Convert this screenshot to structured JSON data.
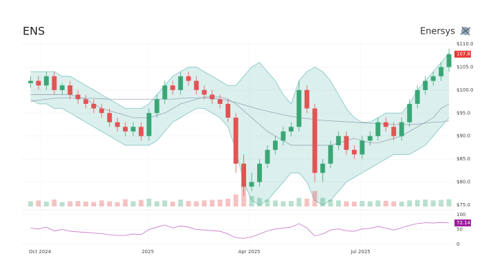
{
  "chart_data": {
    "type": "candlestick",
    "title": "ENS",
    "brand": "Enersys",
    "x": [
      1,
      2,
      3,
      4,
      5,
      6,
      7,
      8,
      9,
      10,
      11,
      12,
      13,
      14,
      15,
      16,
      17,
      18,
      19,
      20,
      21,
      22,
      23,
      24,
      25,
      26,
      27,
      28,
      29,
      30,
      31,
      32,
      33,
      34,
      35,
      36,
      37,
      38,
      39,
      40,
      41,
      42,
      43,
      44,
      45,
      46,
      47,
      48,
      49,
      50,
      51,
      52,
      53,
      54
    ],
    "xlim": [
      0,
      54.6
    ],
    "xticks": [
      {
        "value": 2.2,
        "label": "Oct 2024"
      },
      {
        "value": 15.85,
        "label": "2025"
      },
      {
        "value": 28.7,
        "label": "Apr 2025"
      },
      {
        "value": 42.8,
        "label": "Jul 2025"
      }
    ],
    "open": [
      101.5,
      102,
      101,
      103,
      100,
      101,
      99,
      98,
      97,
      96,
      95,
      93,
      92,
      91,
      92,
      90,
      95,
      98,
      101,
      100,
      103,
      102,
      100,
      99,
      98,
      97,
      94,
      84,
      79,
      80,
      84,
      87,
      89,
      91,
      92,
      100,
      96,
      82,
      84,
      88,
      90,
      87,
      86,
      89,
      90,
      93,
      92,
      90,
      93,
      97,
      100,
      102,
      103,
      105
    ],
    "high": [
      103,
      103,
      104,
      104,
      101.5,
      102,
      100,
      99,
      98,
      97,
      96,
      94,
      93,
      93,
      93,
      96,
      99,
      102,
      102,
      104,
      104,
      103,
      101,
      100,
      99,
      98,
      95,
      86,
      82,
      85,
      88,
      90,
      92,
      93,
      102,
      101,
      97,
      85,
      89,
      91,
      91,
      88,
      90,
      91,
      94,
      94,
      93,
      94,
      98,
      101,
      103,
      104,
      106,
      109
    ],
    "low": [
      100.5,
      100,
      100,
      99,
      99,
      98,
      97,
      96,
      95,
      94,
      92,
      91,
      90,
      90,
      89,
      89,
      94,
      97,
      99,
      99,
      101,
      99,
      98,
      97,
      96,
      93,
      82,
      77,
      78,
      79,
      83,
      86,
      88,
      90,
      91,
      95,
      80,
      80,
      83,
      87,
      86,
      85,
      85,
      88,
      89,
      91,
      89,
      89,
      92,
      96,
      99,
      101,
      102,
      104
    ],
    "close": [
      102,
      101,
      103,
      100,
      101,
      99,
      98,
      97,
      96,
      95,
      93,
      92,
      91,
      92,
      90,
      95,
      98,
      101,
      100,
      103,
      102,
      100,
      99,
      98,
      97,
      94,
      84,
      79,
      80,
      84,
      87,
      89,
      91,
      92,
      100,
      96,
      82,
      84,
      88,
      90,
      87,
      86,
      89,
      90,
      93,
      92,
      90,
      93,
      97,
      100,
      102,
      103,
      105,
      107.8
    ],
    "band_upper": [
      104,
      104,
      104,
      104,
      103,
      103,
      102,
      101,
      100,
      99,
      98,
      97,
      96,
      96,
      96,
      97,
      99,
      101,
      103,
      104,
      105,
      105,
      104,
      103,
      102,
      101,
      101,
      103,
      105,
      106,
      104,
      102,
      99,
      97,
      102,
      104,
      105,
      104,
      102,
      99,
      96,
      94,
      93,
      93,
      94,
      95,
      95,
      95,
      97,
      100,
      102,
      104,
      106,
      108
    ],
    "band_lower": [
      98,
      97,
      97,
      96,
      96,
      95,
      94,
      93,
      92,
      91,
      90,
      89,
      88,
      88,
      88,
      88,
      89,
      91,
      93,
      94,
      95,
      96,
      96,
      95,
      94,
      92,
      87,
      80,
      76,
      75,
      76,
      78,
      80,
      82,
      82,
      80,
      76,
      75,
      76,
      78,
      80,
      81,
      82,
      83,
      84,
      85,
      86,
      86,
      86,
      87,
      88,
      90,
      92,
      94
    ],
    "sma50": [
      99,
      99,
      99,
      99,
      99,
      99,
      98.5,
      98,
      97,
      96,
      95.5,
      95,
      94.5,
      94,
      94,
      94,
      94.5,
      95,
      96,
      97,
      97.5,
      98,
      98.5,
      98.5,
      98.5,
      98,
      97,
      95.5,
      94,
      92.5,
      91,
      90,
      89,
      88,
      88,
      88,
      88,
      88,
      88,
      88.5,
      89,
      89.5,
      89,
      88.5,
      88.5,
      89,
      89.5,
      90,
      91,
      92,
      93,
      94,
      96,
      97
    ],
    "sma200": [
      97.5,
      97.8,
      98,
      98.2,
      98.3,
      98.3,
      98.3,
      98.2,
      98.2,
      98.1,
      98,
      98,
      98,
      98,
      98,
      98,
      98,
      98,
      98,
      98.2,
      98.3,
      98.3,
      98.3,
      98.2,
      98,
      97.7,
      97.3,
      96.8,
      96.3,
      95.8,
      95.4,
      95,
      94.6,
      94.3,
      94,
      93.8,
      93.6,
      93.4,
      93.3,
      93.2,
      93.1,
      93,
      92.9,
      92.8,
      92.7,
      92.6,
      92.5,
      92.5,
      92.5,
      92.6,
      92.8,
      93,
      93.1,
      93.3
    ],
    "ylim": [
      74.7,
      110.6
    ],
    "yticks": [
      {
        "value": 75,
        "label": "$75.0"
      },
      {
        "value": 80,
        "label": "$80.0"
      },
      {
        "value": 85,
        "label": "$85.0"
      },
      {
        "value": 90,
        "label": "$90.0"
      },
      {
        "value": 95,
        "label": "$95.0"
      },
      {
        "value": 100,
        "label": "$100.0"
      },
      {
        "value": 105,
        "label": "$105.0"
      },
      {
        "value": 110,
        "label": "$110.0"
      }
    ],
    "volume": [
      300,
      350,
      280,
      400,
      250,
      300,
      320,
      280,
      260,
      350,
      300,
      250,
      420,
      300,
      380,
      450,
      300,
      350,
      280,
      400,
      320,
      300,
      350,
      380,
      400,
      450,
      700,
      1300,
      600,
      500,
      400,
      350,
      300,
      320,
      500,
      450,
      900,
      500,
      400,
      350,
      300,
      280,
      320,
      300,
      350,
      330,
      300,
      280,
      350,
      380,
      400,
      350,
      380,
      420
    ],
    "volume_ylim": [
      0,
      1400
    ],
    "rsi": {
      "values": [
        55,
        52,
        58,
        45,
        50,
        44,
        42,
        40,
        38,
        36,
        32,
        30,
        30,
        35,
        33,
        50,
        58,
        65,
        55,
        62,
        58,
        50,
        48,
        46,
        44,
        35,
        22,
        20,
        25,
        35,
        45,
        52,
        55,
        58,
        70,
        55,
        28,
        35,
        48,
        52,
        45,
        44,
        52,
        54,
        60,
        55,
        48,
        56,
        64,
        70,
        73,
        72,
        74,
        72.14
      ],
      "ylim": [
        0,
        100
      ],
      "yticks": [
        0,
        50,
        100
      ],
      "color": "#c46cc4"
    },
    "up_color": "#3aa676",
    "down_color": "#e25454",
    "band_color": "#7cc6c0",
    "sma_color": "#9aa3b5",
    "grid": true
  }
}
